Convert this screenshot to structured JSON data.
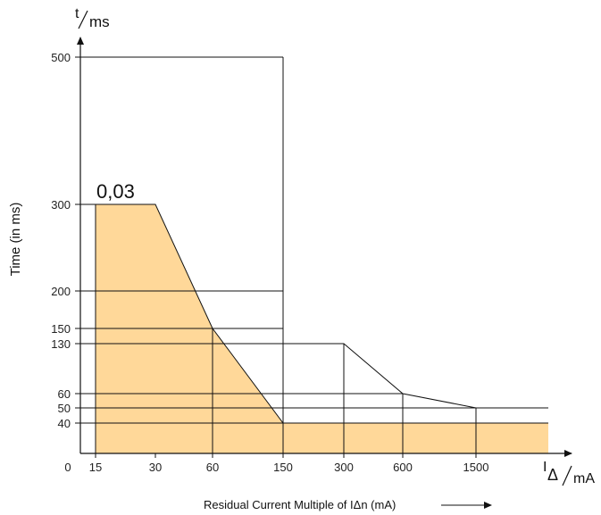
{
  "chart_data": {
    "type": "line",
    "y_axis_unit_label": {
      "num": "t",
      "den": "ms"
    },
    "x_axis_unit_label": {
      "num": "I",
      "sub": "Δ",
      "den": "mA"
    },
    "ylabel": "Time (in ms)",
    "xlabel": "Residual Current Multiple of IΔn (mA)",
    "origin_label": "0",
    "x_categories": [
      "15",
      "30",
      "60",
      "150",
      "300",
      "600",
      "1500"
    ],
    "y_ticks": [
      "500",
      "300",
      "200",
      "150",
      "130",
      "60",
      "50",
      "40"
    ],
    "curve_label": "0,03",
    "series": [
      {
        "name": "0,03",
        "points": [
          {
            "x": "15",
            "y": 300
          },
          {
            "x": "30",
            "y": 300
          },
          {
            "x": "60",
            "y": 150
          },
          {
            "x": "150",
            "y": 40
          },
          {
            "x": "1500",
            "y": 40
          }
        ],
        "filled": true,
        "fill_color": "#ffd899"
      },
      {
        "name": "",
        "points": [
          {
            "x": "150",
            "y": 130
          },
          {
            "x": "300",
            "y": 130
          },
          {
            "x": "600",
            "y": 60
          },
          {
            "x": "1500",
            "y": 50
          }
        ],
        "filled": false
      }
    ]
  }
}
